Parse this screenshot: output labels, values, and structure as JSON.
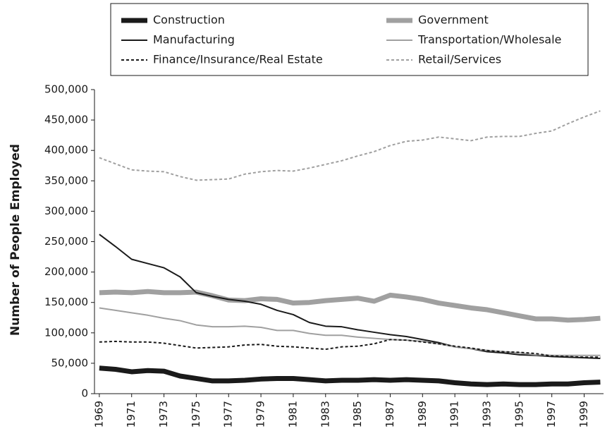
{
  "chart_data": {
    "type": "line",
    "y_label": "Number of People Employed",
    "legend": "top",
    "grid": false,
    "x": [
      1969,
      1970,
      1971,
      1972,
      1973,
      1974,
      1975,
      1976,
      1977,
      1978,
      1979,
      1980,
      1981,
      1982,
      1983,
      1984,
      1985,
      1986,
      1987,
      1988,
      1989,
      1990,
      1991,
      1992,
      1993,
      1994,
      1995,
      1996,
      1997,
      1998,
      1999,
      2000
    ],
    "xlim": [
      1968.7,
      2000.2
    ],
    "xticks": [
      1969,
      1971,
      1973,
      1975,
      1977,
      1979,
      1981,
      1983,
      1985,
      1987,
      1989,
      1991,
      1993,
      1995,
      1997,
      1999
    ],
    "ylim": [
      0,
      500000
    ],
    "yticks": [
      {
        "value": 0,
        "label": "0"
      },
      {
        "value": 50000,
        "label": "50,000"
      },
      {
        "value": 100000,
        "label": "100,000"
      },
      {
        "value": 150000,
        "label": "150,000"
      },
      {
        "value": 200000,
        "label": "200,000"
      },
      {
        "value": 250000,
        "label": "250,000"
      },
      {
        "value": 300000,
        "label": "300,000"
      },
      {
        "value": 350000,
        "label": "350,000"
      },
      {
        "value": 400000,
        "label": "400,000"
      },
      {
        "value": 450000,
        "label": "450,000"
      },
      {
        "value": 500000,
        "label": "500,000"
      }
    ],
    "series": [
      {
        "name": "Construction",
        "color": "#1a1a1a",
        "values": [
          42000,
          40000,
          36000,
          38000,
          37000,
          29000,
          25000,
          21000,
          21000,
          22000,
          24000,
          25000,
          25000,
          23000,
          21000,
          22000,
          22000,
          23000,
          22000,
          23000,
          22000,
          21000,
          18000,
          16000,
          15000,
          16000,
          15000,
          15000,
          16000,
          16000,
          18000,
          19000
        ]
      },
      {
        "name": "Government",
        "color": "#a0a0a0",
        "values": [
          166000,
          167000,
          166000,
          168000,
          166000,
          166000,
          167000,
          161000,
          154000,
          153000,
          156000,
          155000,
          149000,
          150000,
          153000,
          155000,
          157000,
          152000,
          162000,
          159000,
          155000,
          149000,
          145000,
          141000,
          138000,
          133000,
          128000,
          123000,
          123000,
          121000,
          122000,
          124000
        ]
      },
      {
        "name": "Manufacturing",
        "color": "#1a1a1a",
        "values": [
          262000,
          242000,
          221000,
          214000,
          207000,
          192000,
          166000,
          160000,
          155000,
          152000,
          147000,
          137000,
          130000,
          117000,
          111000,
          110000,
          105000,
          101000,
          97000,
          94000,
          89000,
          84000,
          77000,
          74000,
          69000,
          67000,
          64000,
          63000,
          61000,
          60000,
          59000,
          58000
        ]
      },
      {
        "name": "Transportation/Wholesale",
        "color": "#a0a0a0",
        "values": [
          141000,
          137000,
          133000,
          129000,
          124000,
          120000,
          113000,
          110000,
          110000,
          111000,
          109000,
          104000,
          104000,
          99000,
          96000,
          96000,
          93000,
          91000,
          89000,
          88000,
          86000,
          82000,
          77000,
          74000,
          71000,
          69000,
          67000,
          64000,
          63000,
          63000,
          63000,
          63000
        ]
      },
      {
        "name": "Finance/Insurance/Real Estate",
        "color": "#1a1a1a",
        "values": [
          85000,
          86000,
          85000,
          85000,
          83000,
          79000,
          75000,
          76000,
          77000,
          80000,
          81000,
          78000,
          77000,
          75000,
          73000,
          77000,
          78000,
          82000,
          89000,
          88000,
          85000,
          82000,
          78000,
          75000,
          71000,
          69000,
          68000,
          66000,
          62000,
          61000,
          60000,
          60000
        ]
      },
      {
        "name": "Retail/Services",
        "color": "#a0a0a0",
        "values": [
          388000,
          378000,
          368000,
          366000,
          365000,
          357000,
          351000,
          352000,
          353000,
          361000,
          365000,
          367000,
          366000,
          371000,
          377000,
          383000,
          391000,
          398000,
          408000,
          415000,
          417000,
          422000,
          419000,
          416000,
          422000,
          423000,
          423000,
          428000,
          432000,
          444000,
          455000,
          465000
        ]
      }
    ]
  }
}
